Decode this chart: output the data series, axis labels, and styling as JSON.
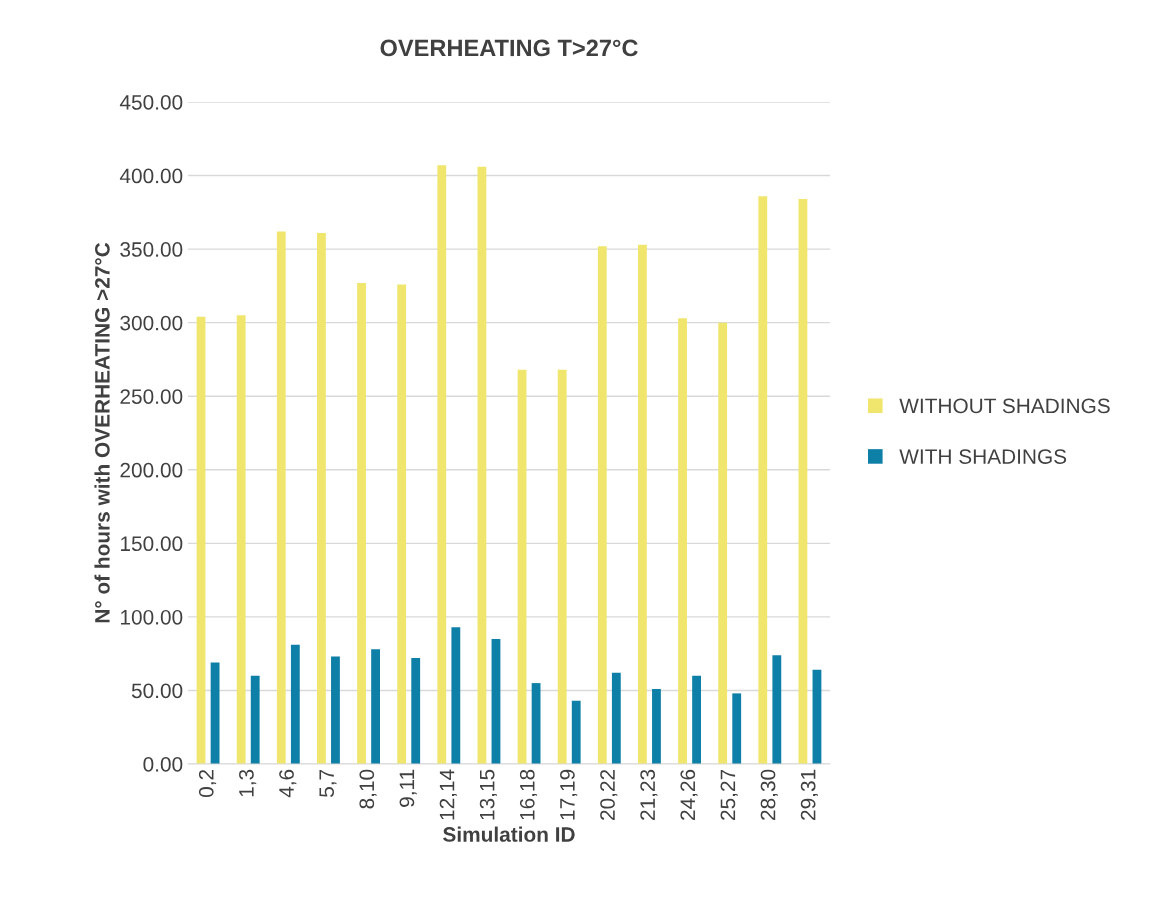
{
  "chart_data": {
    "type": "bar",
    "title": "OVERHEATING T>27°C",
    "xlabel": "Simulation ID",
    "ylabel": "N° of hours with OVERHEATING >27°C",
    "categories": [
      "0,2",
      "1,3",
      "4,6",
      "5,7",
      "8,10",
      "9,11",
      "12,14",
      "13,15",
      "16,18",
      "17,19",
      "20,22",
      "21,23",
      "24,26",
      "25,27",
      "28,30",
      "29,31"
    ],
    "series": [
      {
        "name": "WITHOUT SHADINGS",
        "color": "#f0e66e",
        "values": [
          304,
          305,
          362,
          361,
          327,
          326,
          407,
          406,
          268,
          268,
          352,
          353,
          303,
          300,
          386,
          384
        ]
      },
      {
        "name": "WITH SHADINGS",
        "color": "#0e7fa6",
        "values": [
          69,
          60,
          81,
          73,
          78,
          72,
          93,
          85,
          55,
          43,
          62,
          51,
          60,
          48,
          74,
          64
        ]
      }
    ],
    "ylim": [
      0,
      450
    ],
    "yticks": [
      {
        "value": 0,
        "label": "0.00"
      },
      {
        "value": 50,
        "label": "50.00"
      },
      {
        "value": 100,
        "label": "100.00"
      },
      {
        "value": 150,
        "label": "150.00"
      },
      {
        "value": 200,
        "label": "200.00"
      },
      {
        "value": 250,
        "label": "250.00"
      },
      {
        "value": 300,
        "label": "300.00"
      },
      {
        "value": 350,
        "label": "350.00"
      },
      {
        "value": 400,
        "label": "400.00"
      },
      {
        "value": 450,
        "label": "450.00"
      }
    ],
    "grid": "y",
    "legend": "right"
  }
}
